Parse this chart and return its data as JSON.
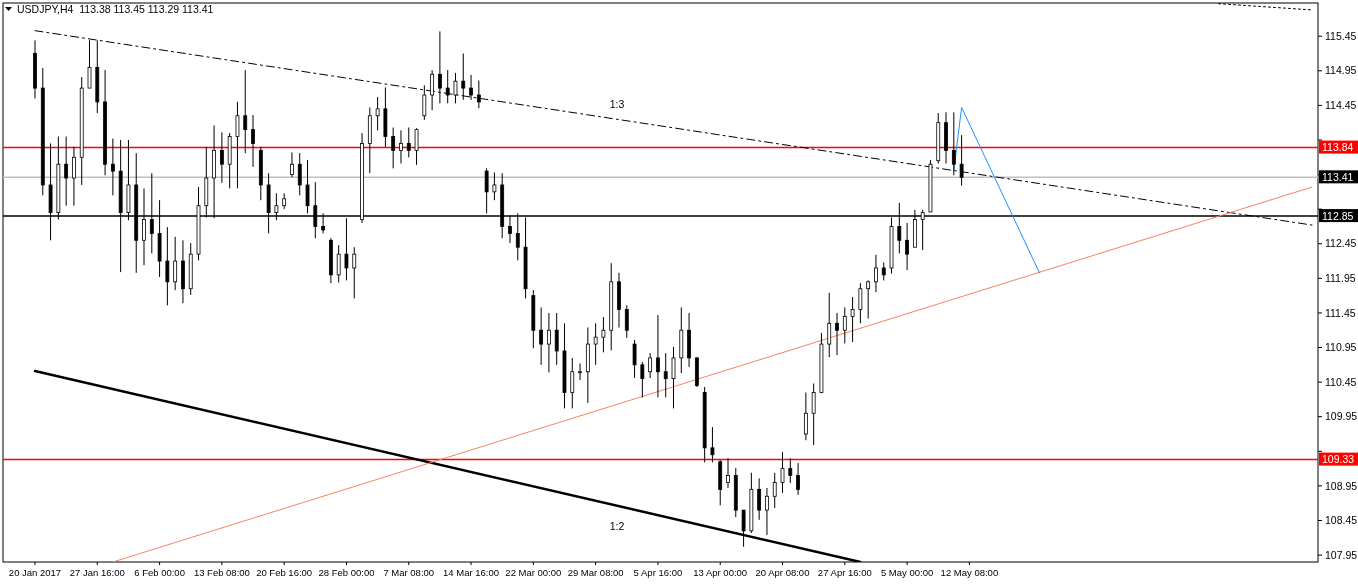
{
  "chart_data": {
    "type": "candlestick",
    "title": "USDJPY,H4  113.38 113.45 113.29 113.41",
    "color": "#000000",
    "categories": [
      "20 Jan 2017",
      null,
      null,
      null,
      null,
      null,
      null,
      null,
      "27 Jan 16:00",
      null,
      null,
      null,
      null,
      null,
      null,
      null,
      "6 Feb 00:00",
      null,
      null,
      null,
      null,
      null,
      null,
      null,
      "13 Feb 08:00",
      null,
      null,
      null,
      null,
      null,
      null,
      null,
      "20 Feb 16:00",
      null,
      null,
      null,
      null,
      null,
      null,
      null,
      "28 Feb 00:00",
      null,
      null,
      null,
      null,
      null,
      null,
      null,
      "7 Mar 08:00",
      null,
      null,
      null,
      null,
      null,
      null,
      null,
      "14 Mar 16:00",
      null,
      null,
      null,
      null,
      null,
      null,
      null,
      "22 Mar 00:00",
      null,
      null,
      null,
      null,
      null,
      null,
      null,
      "29 Mar 08:00",
      null,
      null,
      null,
      null,
      null,
      null,
      null,
      "5 Apr 16:00",
      null,
      null,
      null,
      null,
      null,
      null,
      null,
      "13 Apr 00:00",
      null,
      null,
      null,
      null,
      null,
      null,
      null,
      "20 Apr 08:00",
      null,
      null,
      null,
      null,
      null,
      null,
      null,
      "27 Apr 16:00",
      null,
      null,
      null,
      null,
      null,
      null,
      null,
      "5 May 00:00",
      null,
      null,
      null,
      null,
      null,
      null,
      null,
      "12 May 08:00",
      null,
      null,
      null,
      null,
      null,
      null,
      null,
      null,
      null,
      null,
      null,
      null,
      null,
      null,
      null,
      null,
      null,
      null,
      null,
      null,
      null,
      null,
      null,
      null,
      null,
      null,
      null,
      null,
      null,
      null,
      null,
      null,
      null,
      null,
      null,
      null,
      null,
      null,
      null,
      null,
      null,
      null,
      null,
      null
    ],
    "ohlc": [
      [
        115.2,
        115.39,
        114.55,
        114.7
      ],
      [
        114.7,
        114.99,
        113.15,
        113.3
      ],
      [
        113.3,
        113.9,
        112.5,
        112.9
      ],
      [
        112.9,
        114.0,
        112.8,
        113.6
      ],
      [
        113.6,
        114.0,
        113.0,
        113.4
      ],
      [
        113.4,
        113.85,
        113.0,
        113.7
      ],
      [
        113.7,
        114.86,
        113.3,
        114.7
      ],
      [
        114.7,
        115.39,
        114.7,
        115.0
      ],
      [
        115.0,
        115.39,
        114.34,
        114.5
      ],
      [
        114.5,
        114.96,
        113.44,
        113.6
      ],
      [
        113.6,
        113.97,
        113.15,
        113.5
      ],
      [
        113.5,
        113.95,
        112.04,
        112.9
      ],
      [
        112.9,
        113.95,
        112.79,
        113.3
      ],
      [
        113.3,
        113.76,
        112.03,
        112.5
      ],
      [
        112.5,
        113.25,
        112.14,
        112.8
      ],
      [
        112.8,
        113.47,
        112.31,
        112.6
      ],
      [
        112.6,
        113.08,
        111.97,
        112.2
      ],
      [
        112.2,
        112.69,
        111.56,
        111.9
      ],
      [
        111.9,
        112.55,
        111.78,
        112.2
      ],
      [
        112.2,
        112.5,
        111.59,
        111.8
      ],
      [
        111.8,
        112.46,
        111.71,
        112.3
      ],
      [
        112.3,
        113.27,
        112.21,
        113.0
      ],
      [
        113.0,
        113.85,
        112.83,
        113.4
      ],
      [
        113.4,
        114.16,
        112.82,
        113.8
      ],
      [
        113.8,
        114.06,
        113.33,
        113.6
      ],
      [
        113.6,
        114.05,
        113.25,
        114.0
      ],
      [
        114.0,
        114.5,
        113.25,
        114.3
      ],
      [
        114.3,
        114.96,
        113.76,
        114.1
      ],
      [
        114.1,
        114.31,
        113.56,
        113.9
      ],
      [
        113.8,
        113.85,
        113.08,
        113.3
      ],
      [
        113.3,
        113.47,
        112.6,
        112.9
      ],
      [
        112.9,
        113.18,
        112.79,
        113.0
      ],
      [
        113.0,
        113.18,
        112.95,
        113.1
      ],
      [
        113.45,
        113.77,
        113.41,
        113.6
      ],
      [
        113.6,
        113.76,
        113.15,
        113.3
      ],
      [
        113.3,
        113.66,
        112.89,
        113.0
      ],
      [
        113.0,
        113.34,
        112.53,
        112.7
      ],
      [
        112.7,
        112.89,
        112.6,
        112.65
      ],
      [
        112.5,
        112.53,
        111.88,
        112.0
      ],
      [
        112.0,
        112.43,
        111.89,
        112.3
      ],
      [
        112.3,
        112.82,
        111.92,
        112.1
      ],
      [
        112.1,
        112.4,
        111.66,
        112.3
      ],
      [
        112.8,
        114.05,
        112.75,
        113.9
      ],
      [
        113.9,
        114.42,
        113.47,
        114.3
      ],
      [
        114.3,
        114.57,
        114.09,
        114.4
      ],
      [
        114.4,
        114.71,
        113.85,
        114.0
      ],
      [
        114.0,
        114.13,
        113.54,
        113.8
      ],
      [
        113.8,
        114.09,
        113.61,
        113.9
      ],
      [
        113.9,
        114.13,
        113.7,
        113.8
      ],
      [
        113.8,
        114.12,
        113.59,
        114.1
      ],
      [
        114.3,
        114.74,
        114.24,
        114.6
      ],
      [
        114.6,
        114.96,
        114.38,
        114.9
      ],
      [
        114.9,
        115.52,
        114.48,
        114.7
      ],
      [
        114.7,
        114.96,
        114.48,
        114.6
      ],
      [
        114.6,
        114.92,
        114.48,
        114.8
      ],
      [
        114.8,
        115.2,
        114.53,
        114.7
      ],
      [
        114.7,
        114.89,
        114.53,
        114.6
      ],
      [
        114.6,
        114.81,
        114.41,
        114.5
      ],
      [
        113.5,
        113.54,
        112.89,
        113.2
      ],
      [
        113.2,
        113.48,
        113.08,
        113.3
      ],
      [
        113.3,
        113.47,
        112.53,
        112.7
      ],
      [
        112.7,
        112.86,
        112.46,
        112.6
      ],
      [
        112.6,
        112.89,
        112.21,
        112.4
      ],
      [
        112.4,
        112.83,
        111.66,
        111.8
      ],
      [
        111.7,
        111.78,
        110.94,
        111.2
      ],
      [
        111.2,
        111.53,
        110.7,
        111.0
      ],
      [
        111.0,
        111.45,
        110.59,
        111.2
      ],
      [
        111.2,
        111.45,
        110.7,
        110.9
      ],
      [
        110.9,
        111.3,
        110.07,
        110.3
      ],
      [
        110.3,
        110.8,
        110.07,
        110.6
      ],
      [
        110.6,
        110.72,
        110.48,
        110.6
      ],
      [
        110.6,
        111.24,
        110.15,
        111.0
      ],
      [
        111.0,
        111.3,
        110.7,
        111.1
      ],
      [
        111.1,
        111.39,
        110.88,
        111.2
      ],
      [
        111.2,
        112.17,
        110.91,
        111.9
      ],
      [
        111.9,
        112.03,
        111.24,
        111.5
      ],
      [
        111.5,
        111.56,
        111.09,
        111.2
      ],
      [
        111.0,
        111.06,
        110.51,
        110.7
      ],
      [
        110.7,
        110.74,
        110.23,
        110.5
      ],
      [
        110.6,
        110.87,
        110.51,
        110.8
      ],
      [
        110.8,
        111.42,
        110.23,
        110.6
      ],
      [
        110.6,
        110.87,
        110.23,
        110.5
      ],
      [
        110.5,
        110.96,
        110.07,
        110.8
      ],
      [
        110.8,
        111.53,
        110.58,
        111.2
      ],
      [
        111.2,
        111.45,
        110.67,
        110.8
      ],
      [
        110.8,
        110.81,
        110.38,
        110.4
      ],
      [
        110.3,
        110.38,
        109.29,
        109.5
      ],
      [
        109.5,
        109.8,
        109.29,
        109.4
      ],
      [
        109.3,
        109.32,
        108.67,
        108.9
      ],
      [
        109.0,
        109.35,
        108.92,
        109.1
      ],
      [
        109.1,
        109.21,
        108.5,
        108.6
      ],
      [
        108.6,
        108.6,
        108.07,
        108.3
      ],
      [
        108.3,
        109.14,
        108.27,
        108.9
      ],
      [
        108.9,
        109.06,
        108.46,
        108.6
      ],
      [
        108.6,
        108.92,
        108.24,
        108.8
      ],
      [
        108.8,
        109.14,
        108.63,
        109.0
      ],
      [
        109.0,
        109.44,
        108.85,
        109.2
      ],
      [
        109.2,
        109.35,
        108.99,
        109.1
      ],
      [
        109.1,
        109.28,
        108.82,
        108.9
      ],
      [
        109.7,
        110.3,
        109.61,
        110.0
      ],
      [
        110.0,
        110.43,
        109.54,
        110.3
      ],
      [
        110.3,
        111.16,
        110.29,
        111.0
      ],
      [
        111.0,
        111.74,
        110.81,
        111.3
      ],
      [
        111.3,
        111.45,
        110.84,
        111.2
      ],
      [
        111.2,
        111.53,
        111.01,
        111.4
      ],
      [
        111.4,
        111.68,
        111.03,
        111.5
      ],
      [
        111.5,
        111.88,
        111.3,
        111.8
      ],
      [
        111.8,
        111.92,
        111.37,
        111.9
      ],
      [
        111.9,
        112.29,
        111.75,
        112.1
      ],
      [
        112.1,
        112.18,
        111.92,
        112.0
      ],
      [
        112.1,
        112.83,
        112.02,
        112.7
      ],
      [
        112.7,
        113.04,
        112.31,
        112.5
      ],
      [
        112.5,
        112.75,
        112.07,
        112.3
      ],
      [
        112.4,
        112.94,
        112.4,
        112.8
      ],
      [
        112.8,
        112.94,
        112.36,
        112.9
      ],
      [
        112.91,
        113.66,
        112.91,
        113.6
      ],
      [
        113.65,
        114.34,
        113.61,
        114.2
      ],
      [
        114.2,
        114.35,
        113.61,
        113.8
      ],
      [
        113.8,
        114.35,
        113.44,
        113.6
      ],
      [
        113.6,
        114.02,
        113.29,
        113.41
      ],
      null,
      null,
      null,
      null,
      null,
      null,
      null,
      null,
      null,
      null,
      null,
      null,
      null,
      null,
      null,
      null,
      null,
      null,
      null,
      null,
      null,
      null,
      null,
      null,
      null,
      null,
      null,
      null,
      null,
      null,
      null,
      null,
      null,
      null,
      null,
      null,
      null,
      null,
      null,
      null,
      null,
      null,
      null,
      null,
      null
    ],
    "series": [
      {
        "type": "line",
        "color": "#000000",
        "line_style": "dashed",
        "values": [
          115.53,
          null,
          null,
          null,
          null,
          null,
          null,
          null,
          null,
          null,
          null,
          null,
          null,
          null,
          null,
          null,
          null,
          null,
          null,
          null,
          null,
          null,
          null,
          null,
          null,
          null,
          null,
          null,
          null,
          null,
          null,
          null,
          null,
          null,
          null,
          null,
          null,
          null,
          null,
          null,
          null,
          null,
          null,
          null,
          null,
          null,
          null,
          null,
          null,
          null,
          null,
          null,
          null,
          null,
          null,
          null,
          null,
          null,
          null,
          null,
          null,
          null,
          null,
          null,
          null,
          null,
          null,
          null,
          null,
          null,
          null,
          null,
          null,
          null,
          null,
          null,
          null,
          null,
          null,
          null,
          null,
          null,
          null,
          null,
          null,
          null,
          null,
          null,
          null,
          null,
          null,
          null,
          null,
          null,
          null,
          null,
          null,
          null,
          null,
          null,
          null,
          null,
          null,
          null,
          null,
          null,
          null,
          null,
          null,
          null,
          null,
          null,
          null,
          null,
          null,
          null,
          null,
          null,
          null,
          null,
          null,
          null,
          null,
          null,
          null,
          null,
          null,
          null,
          null,
          null,
          null,
          null,
          null,
          null,
          null,
          null,
          null,
          null,
          null,
          null,
          null,
          null,
          null,
          null,
          null,
          null,
          null,
          null,
          null,
          null,
          null,
          null,
          null,
          null,
          null,
          null,
          null,
          null,
          null,
          null,
          null,
          null,
          null,
          null,
          112.72
        ]
      },
      {
        "type": "line",
        "color": "#000000",
        "line_style": "dotted",
        "values": [
          null,
          null,
          null,
          null,
          null,
          null,
          null,
          null,
          null,
          null,
          null,
          null,
          null,
          null,
          null,
          null,
          null,
          null,
          null,
          null,
          null,
          null,
          null,
          null,
          null,
          null,
          null,
          null,
          null,
          null,
          null,
          null,
          null,
          null,
          null,
          null,
          null,
          null,
          null,
          null,
          null,
          null,
          null,
          null,
          null,
          null,
          null,
          null,
          null,
          null,
          null,
          null,
          null,
          null,
          null,
          null,
          null,
          null,
          null,
          null,
          null,
          null,
          null,
          null,
          null,
          null,
          null,
          null,
          null,
          null,
          null,
          null,
          null,
          null,
          null,
          null,
          null,
          null,
          null,
          null,
          null,
          null,
          null,
          null,
          null,
          null,
          null,
          null,
          null,
          null,
          null,
          null,
          null,
          null,
          null,
          null,
          null,
          null,
          null,
          null,
          null,
          null,
          null,
          null,
          null,
          null,
          null,
          null,
          null,
          null,
          null,
          null,
          null,
          null,
          null,
          null,
          null,
          null,
          null,
          null,
          null,
          null,
          null,
          null,
          null,
          null,
          null,
          null,
          null,
          null,
          null,
          null,
          null,
          null,
          null,
          null,
          null,
          null,
          null,
          null,
          null,
          null,
          null,
          null,
          null,
          null,
          null,
          null,
          null,
          null,
          null,
          null,
          115.92,
          null,
          null,
          null,
          null,
          null,
          null,
          null,
          null,
          null,
          null,
          null,
          115.83
        ]
      },
      {
        "type": "line",
        "color": "#000000",
        "line_style": "solid",
        "values": [
          110.61,
          null,
          null,
          null,
          null,
          null,
          null,
          null,
          null,
          null,
          null,
          null,
          null,
          null,
          null,
          null,
          null,
          null,
          null,
          null,
          null,
          null,
          null,
          null,
          null,
          null,
          null,
          null,
          null,
          null,
          null,
          null,
          null,
          null,
          null,
          null,
          null,
          null,
          null,
          null,
          null,
          null,
          null,
          null,
          null,
          null,
          null,
          null,
          null,
          null,
          null,
          null,
          null,
          null,
          null,
          null,
          null,
          null,
          null,
          null,
          null,
          null,
          null,
          null,
          null,
          null,
          null,
          null,
          null,
          null,
          null,
          null,
          null,
          null,
          null,
          null,
          null,
          null,
          null,
          null,
          null,
          null,
          null,
          null,
          null,
          null,
          null,
          null,
          null,
          null,
          null,
          null,
          null,
          null,
          null,
          null,
          null,
          null,
          null,
          null,
          null,
          null,
          null,
          null,
          null,
          null,
          107.85,
          null,
          null,
          null,
          null,
          null,
          null,
          null,
          null,
          null,
          null,
          null,
          null,
          null,
          null,
          null,
          null,
          null,
          null,
          null,
          null,
          null,
          null,
          null,
          null,
          null,
          null,
          null,
          null,
          null,
          null,
          null,
          null,
          null,
          null,
          null,
          null,
          null,
          null,
          null,
          null,
          null,
          null,
          null,
          null,
          null,
          null,
          null,
          null,
          null,
          null,
          null,
          null,
          null,
          null,
          null,
          null,
          null,
          null
        ]
      },
      {
        "type": "line",
        "color": "#f4845f",
        "line_style": "solid",
        "values": [
          null,
          null,
          null,
          null,
          null,
          null,
          null,
          null,
          null,
          null,
          107.85,
          null,
          null,
          null,
          null,
          null,
          null,
          null,
          null,
          null,
          null,
          null,
          null,
          null,
          null,
          null,
          null,
          null,
          null,
          null,
          null,
          null,
          null,
          null,
          null,
          null,
          null,
          null,
          null,
          null,
          null,
          null,
          null,
          null,
          null,
          null,
          null,
          null,
          null,
          null,
          null,
          null,
          null,
          null,
          null,
          null,
          null,
          null,
          null,
          null,
          null,
          null,
          null,
          null,
          null,
          null,
          null,
          null,
          null,
          null,
          null,
          null,
          null,
          null,
          null,
          null,
          null,
          null,
          null,
          null,
          null,
          null,
          null,
          null,
          null,
          null,
          null,
          null,
          null,
          null,
          null,
          null,
          null,
          null,
          null,
          null,
          null,
          null,
          null,
          null,
          null,
          null,
          null,
          null,
          null,
          null,
          null,
          null,
          null,
          null,
          null,
          null,
          null,
          null,
          null,
          null,
          null,
          null,
          null,
          null,
          null,
          null,
          null,
          null,
          null,
          null,
          null,
          null,
          null,
          null,
          null,
          null,
          null,
          null,
          null,
          null,
          null,
          null,
          null,
          null,
          null,
          null,
          null,
          null,
          null,
          null,
          null,
          null,
          null,
          null,
          null,
          null,
          null,
          null,
          null,
          null,
          null,
          null,
          null,
          null,
          null,
          null,
          null,
          null,
          113.27
        ]
      },
      {
        "type": "line",
        "color": "#1e90ff",
        "line_style": "solid",
        "values": [
          null,
          null,
          null,
          null,
          null,
          null,
          null,
          null,
          null,
          null,
          null,
          null,
          null,
          null,
          null,
          null,
          null,
          null,
          null,
          null,
          null,
          null,
          null,
          null,
          null,
          null,
          null,
          null,
          null,
          null,
          null,
          null,
          null,
          null,
          null,
          null,
          null,
          null,
          null,
          null,
          null,
          null,
          null,
          null,
          null,
          null,
          null,
          null,
          null,
          null,
          null,
          null,
          null,
          null,
          null,
          null,
          null,
          null,
          null,
          null,
          null,
          null,
          null,
          null,
          null,
          null,
          null,
          null,
          null,
          null,
          null,
          null,
          null,
          null,
          null,
          null,
          null,
          null,
          null,
          null,
          null,
          null,
          null,
          null,
          null,
          null,
          null,
          null,
          null,
          null,
          null,
          null,
          null,
          null,
          null,
          null,
          null,
          null,
          null,
          null,
          null,
          null,
          null,
          null,
          null,
          null,
          null,
          null,
          null,
          null,
          null,
          null,
          null,
          null,
          null,
          null,
          null,
          null,
          113.51,
          114.42,
          null,
          null,
          null,
          null,
          null,
          null,
          null,
          null,
          null,
          112.03,
          null,
          null,
          null,
          null,
          null,
          null,
          null,
          null,
          null,
          null,
          null,
          null,
          null,
          null,
          null,
          null,
          null,
          null,
          null,
          null,
          null,
          null,
          null,
          null,
          null,
          null,
          null,
          null,
          null,
          null,
          null,
          null,
          null,
          null,
          null
        ]
      }
    ],
    "ylim": [
      107.85,
      115.93
    ],
    "yticks": [
      107.95,
      108.45,
      108.95,
      {
        "value": 109.45,
        "label": null
      },
      109.95,
      110.45,
      110.95,
      111.45,
      111.95,
      112.45,
      {
        "value": 112.95,
        "label": null
      },
      {
        "value": 113.45,
        "label": null
      },
      {
        "value": 113.95,
        "label": null
      },
      114.45,
      114.95,
      115.45
    ],
    "ref_lines": [
      {
        "axis": "y",
        "value": 113.84,
        "label": "113.84",
        "color": "#ff0000"
      },
      {
        "axis": "y",
        "value": 113.41,
        "label": "113.41",
        "color": "#c0c0c0"
      },
      {
        "axis": "y",
        "value": 112.85,
        "label": "112.85",
        "color": "#000000"
      },
      {
        "axis": "y",
        "value": 109.33,
        "label": "109.33",
        "color": "#ff0000"
      }
    ],
    "annotations": [
      "1:3",
      "1:2"
    ]
  }
}
